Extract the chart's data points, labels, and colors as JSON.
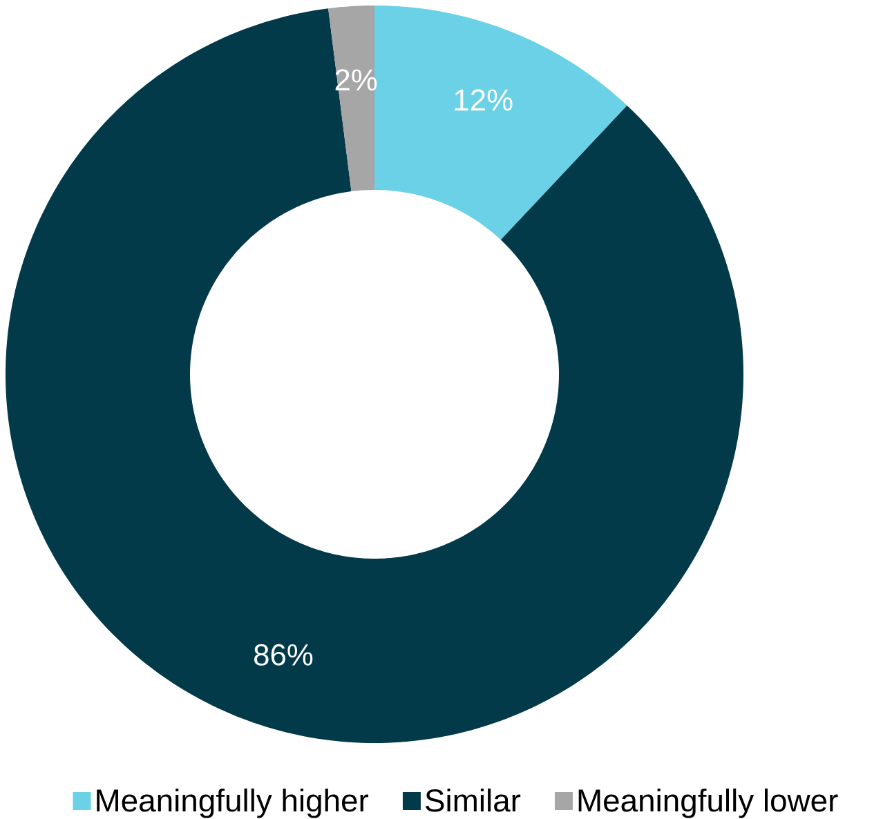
{
  "chart_data": {
    "type": "donut",
    "categories": [
      "Meaningfully higher",
      "Similar",
      "Meaningfully lower"
    ],
    "values": [
      12,
      86,
      2
    ],
    "colors": [
      "#6ad1e6",
      "#023a4a",
      "#a6a6a6"
    ],
    "value_labels": [
      "12%",
      "86%",
      "2%"
    ],
    "legend": "bottom"
  }
}
